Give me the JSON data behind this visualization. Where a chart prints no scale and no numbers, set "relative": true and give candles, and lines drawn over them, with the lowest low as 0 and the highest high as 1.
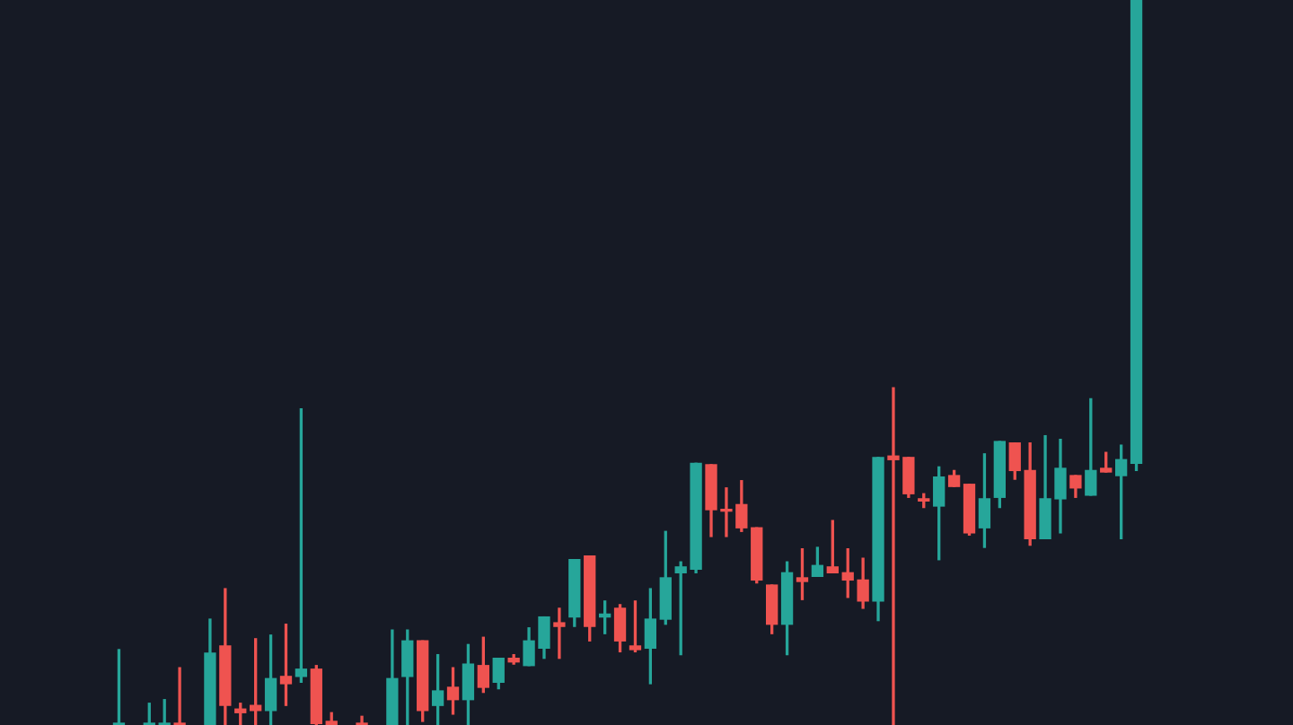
{
  "chart_data": {
    "type": "candlestick",
    "relative": true,
    "categories": [
      null,
      null,
      null,
      null,
      null,
      null,
      null,
      null,
      null,
      null,
      null,
      null,
      null,
      null,
      null,
      null,
      null,
      null,
      null,
      null,
      null,
      null,
      null,
      null,
      null,
      null,
      null,
      null,
      null,
      null,
      null,
      null,
      null,
      null,
      null,
      null,
      null,
      null,
      null,
      null,
      null,
      null,
      null,
      null,
      null,
      null,
      null,
      null,
      null,
      null,
      null,
      null,
      null,
      null,
      null,
      null,
      null,
      null,
      null,
      null,
      null,
      null,
      null,
      null,
      null,
      null,
      null,
      null
    ],
    "ohlc": [
      [
        0,
        0.104,
        0,
        0.002
      ],
      null,
      [
        0,
        0.03,
        0,
        0.002
      ],
      [
        0,
        0.035,
        0,
        0.002
      ],
      [
        0.002,
        0.079,
        0,
        0
      ],
      null,
      [
        0,
        0.146,
        0,
        0.099
      ],
      [
        0.109,
        0.188,
        0,
        0.027
      ],
      [
        0.022,
        0.03,
        0,
        0.017
      ],
      [
        0.027,
        0.119,
        0,
        0.02
      ],
      [
        0.02,
        0.124,
        0,
        0.064
      ],
      [
        0.067,
        0.139,
        0.027,
        0.057
      ],
      [
        0.067,
        0.436,
        0.059,
        0.077
      ],
      [
        0.077,
        0.082,
        0,
        0.002
      ],
      [
        0.005,
        0.017,
        0,
        0
      ],
      null,
      [
        0.002,
        0.012,
        0,
        0
      ],
      null,
      [
        0,
        0.131,
        0,
        0.064
      ],
      [
        0.067,
        0.131,
        0,
        0.116
      ],
      [
        0.116,
        0.116,
        0.005,
        0.02
      ],
      [
        0.027,
        0.097,
        0,
        0.047
      ],
      [
        0.052,
        0.079,
        0.015,
        0.035
      ],
      [
        0.035,
        0.111,
        0,
        0.084
      ],
      [
        0.082,
        0.121,
        0.045,
        0.052
      ],
      [
        0.059,
        0.092,
        0.05,
        0.092
      ],
      [
        0.092,
        0.097,
        0.084,
        0.087
      ],
      [
        0.082,
        0.134,
        0.082,
        0.116
      ],
      [
        0.106,
        0.149,
        0.092,
        0.149
      ],
      [
        0.141,
        0.161,
        0.092,
        0.136
      ],
      [
        0.149,
        0.228,
        0.136,
        0.228
      ],
      [
        0.233,
        0.233,
        0.116,
        0.136
      ],
      [
        0.149,
        0.171,
        0.126,
        0.153
      ],
      [
        0.161,
        0.166,
        0.101,
        0.116
      ],
      [
        0.109,
        0.171,
        0.101,
        0.104
      ],
      [
        0.106,
        0.188,
        0.057,
        0.146
      ],
      [
        0.146,
        0.267,
        0.139,
        0.203
      ],
      [
        0.21,
        0.225,
        0.097,
        0.218
      ],
      [
        0.215,
        0.361,
        0.21,
        0.361
      ],
      [
        0.359,
        0.359,
        0.26,
        0.297
      ],
      [
        0.297,
        0.327,
        0.26,
        0.295
      ],
      [
        0.304,
        0.337,
        0.267,
        0.272
      ],
      [
        0.272,
        0.272,
        0.196,
        0.2
      ],
      [
        0.193,
        0.193,
        0.126,
        0.139
      ],
      [
        0.139,
        0.225,
        0.097,
        0.21
      ],
      [
        0.203,
        0.243,
        0.173,
        0.198
      ],
      [
        0.205,
        0.245,
        0.205,
        0.22
      ],
      [
        0.218,
        0.282,
        0.21,
        0.21
      ],
      [
        0.21,
        0.243,
        0.176,
        0.2
      ],
      [
        0.2,
        0.23,
        0.161,
        0.171
      ],
      [
        0.171,
        0.369,
        0.144,
        0.369
      ],
      [
        0.371,
        0.465,
        0,
        0.366
      ],
      [
        0.369,
        0.369,
        0.314,
        0.319
      ],
      [
        0.312,
        0.319,
        0.3,
        0.309
      ],
      [
        0.302,
        0.356,
        0.228,
        0.342
      ],
      [
        0.344,
        0.351,
        0.329,
        0.329
      ],
      [
        0.332,
        0.332,
        0.262,
        0.265
      ],
      [
        0.272,
        0.374,
        0.245,
        0.312
      ],
      [
        0.314,
        0.391,
        0.3,
        0.391
      ],
      [
        0.389,
        0.389,
        0.339,
        0.351
      ],
      [
        0.351,
        0.389,
        0.248,
        0.257
      ],
      [
        0.257,
        0.399,
        0.257,
        0.312
      ],
      [
        0.312,
        0.394,
        0.265,
        0.354
      ],
      [
        0.344,
        0.344,
        0.314,
        0.327
      ],
      [
        0.317,
        0.45,
        0.317,
        0.351
      ],
      [
        0.354,
        0.376,
        0.349,
        0.349
      ],
      [
        0.344,
        0.386,
        0.257,
        0.366
      ],
      [
        0.361,
        1,
        0.351,
        1
      ]
    ],
    "colors": [
      "#26a69a",
      null,
      "#26a69a",
      "#26a69a",
      "#ef5350",
      null,
      "#26a69a",
      "#ef5350",
      "#ef5350",
      "#ef5350",
      "#26a69a",
      "#ef5350",
      "#26a69a",
      "#ef5350",
      "#ef5350",
      null,
      "#ef5350",
      null,
      "#26a69a",
      "#26a69a",
      "#ef5350",
      "#26a69a",
      "#ef5350",
      "#26a69a",
      "#ef5350",
      "#26a69a",
      "#ef5350",
      "#26a69a",
      "#26a69a",
      "#ef5350",
      "#26a69a",
      "#ef5350",
      "#26a69a",
      "#ef5350",
      "#ef5350",
      "#26a69a",
      "#26a69a",
      "#26a69a",
      "#26a69a",
      "#ef5350",
      "#ef5350",
      "#ef5350",
      "#ef5350",
      "#ef5350",
      "#26a69a",
      "#ef5350",
      "#26a69a",
      "#ef5350",
      "#ef5350",
      "#ef5350",
      "#26a69a",
      "#ef5350",
      "#ef5350",
      "#ef5350",
      "#26a69a",
      "#ef5350",
      "#ef5350",
      "#26a69a",
      "#26a69a",
      "#ef5350",
      "#ef5350",
      "#26a69a",
      "#26a69a",
      "#ef5350",
      "#26a69a",
      "#ef5350",
      "#26a69a",
      "#26a69a"
    ]
  }
}
